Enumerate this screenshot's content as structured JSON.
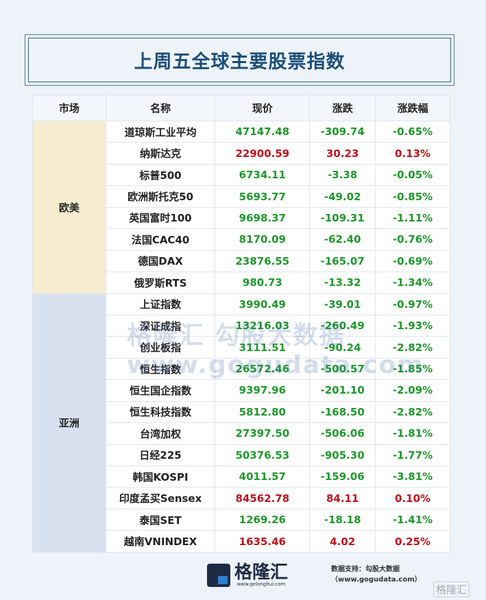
{
  "title": "上周五全球主要股票指数",
  "headers": [
    "市场",
    "名称",
    "现价",
    "涨跌",
    "涨跌幅"
  ],
  "colors": {
    "up": "#c3121c",
    "down": "#1d9a2b",
    "title": "#1b4e7a",
    "europe_bg": "#f5ecd0",
    "asia_bg": "#d8e1f0"
  },
  "groups": [
    {
      "market": "欧美",
      "rows": [
        [
          "道琼斯工业平均",
          "47147.48",
          "-309.74",
          "-0.65%"
        ],
        [
          "纳斯达克",
          "22900.59",
          "30.23",
          "0.13%"
        ],
        [
          "标普500",
          "6734.11",
          "-3.38",
          "-0.05%"
        ],
        [
          "欧洲斯托克50",
          "5693.77",
          "-49.02",
          "-0.85%"
        ],
        [
          "英国富时100",
          "9698.37",
          "-109.31",
          "-1.11%"
        ],
        [
          "法国CAC40",
          "8170.09",
          "-62.40",
          "-0.76%"
        ],
        [
          "德国DAX",
          "23876.55",
          "-165.07",
          "-0.69%"
        ],
        [
          "俄罗斯RTS",
          "980.73",
          "-13.32",
          "-1.34%"
        ]
      ]
    },
    {
      "market": "亚洲",
      "rows": [
        [
          "上证指数",
          "3990.49",
          "-39.01",
          "-0.97%"
        ],
        [
          "深证成指",
          "13216.03",
          "-260.49",
          "-1.93%"
        ],
        [
          "创业板指",
          "3111.51",
          "-90.24",
          "-2.82%"
        ],
        [
          "恒生指数",
          "26572.46",
          "-500.57",
          "-1.85%"
        ],
        [
          "恒生国企指数",
          "9397.96",
          "-201.10",
          "-2.09%"
        ],
        [
          "恒生科技指数",
          "5812.80",
          "-168.50",
          "-2.82%"
        ],
        [
          "台湾加权",
          "27397.50",
          "-506.06",
          "-1.81%"
        ],
        [
          "日经225",
          "50376.53",
          "-905.30",
          "-1.77%"
        ],
        [
          "韩国KOSPI",
          "4011.57",
          "-159.06",
          "-3.81%"
        ],
        [
          "印度孟买Sensex",
          "84562.78",
          "84.11",
          "0.10%"
        ],
        [
          "泰国SET",
          "1269.26",
          "-18.18",
          "-1.41%"
        ],
        [
          "越南VNINDEX",
          "1635.46",
          "4.02",
          "0.25%"
        ]
      ]
    }
  ],
  "watermark": "格隆汇  勾股大数据  www.gogudata.com",
  "logo": {
    "text": "格隆汇",
    "url": "www.gelonghui.com"
  },
  "source": "数据支持：勾股大数据（www.gogudata.com）",
  "corner_badge": "格隆汇"
}
